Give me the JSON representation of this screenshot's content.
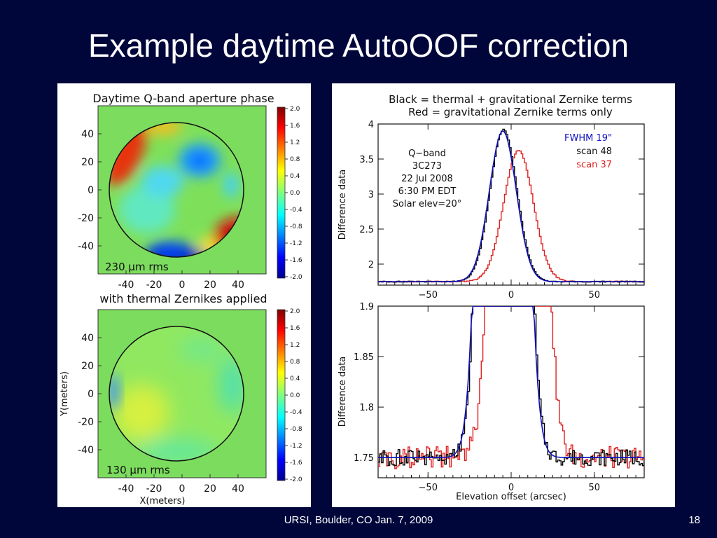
{
  "slide": {
    "title": "Example daytime AutoOOF correction",
    "footer": "URSI, Boulder, CO Jan. 7, 2009",
    "page_number": "18"
  },
  "chart_data": [
    {
      "type": "heatmap",
      "title": "Daytime Q-band aperture phase",
      "annotation": "230 μm rms",
      "x_ticks": [
        "-40",
        "-20",
        "0",
        "20",
        "40"
      ],
      "y_ticks": [
        "40",
        "20",
        "0",
        "-20",
        "-40"
      ],
      "colorbar_ticks": [
        "2.0",
        "1.6",
        "1.2",
        "0.8",
        "0.4",
        "0.0",
        "-0.4",
        "-0.8",
        "-1.2",
        "-1.6",
        "-2.0"
      ],
      "range": [
        -2.0,
        2.0
      ],
      "colormap": "jet",
      "colors": {
        "background": "#7cdc5e"
      }
    },
    {
      "type": "heatmap",
      "title": "with thermal Zernikes applied",
      "annotation": "130 μm rms",
      "x_ticks": [
        "-40",
        "-20",
        "0",
        "20",
        "40"
      ],
      "y_ticks": [
        "40",
        "20",
        "0",
        "-20",
        "-40"
      ],
      "xlabel": "X(meters)",
      "ylabel": "Y(meters)",
      "colorbar_ticks": [
        "2.0",
        "1.6",
        "1.2",
        "0.8",
        "0.4",
        "0.0",
        "-0.4",
        "-0.8",
        "-1.2",
        "-1.6",
        "-2.0"
      ],
      "range": [
        -2.0,
        2.0
      ],
      "colormap": "jet"
    },
    {
      "type": "line",
      "title_lines": [
        "Black = thermal + gravitational Zernike terms",
        "Red = gravitational Zernike terms only"
      ],
      "ylabel": "Difference data",
      "xlim": [
        -80,
        80
      ],
      "ylim": [
        1.7,
        4.0
      ],
      "x_ticks": [
        "−50",
        "0",
        "50"
      ],
      "y_ticks": [
        "4",
        "3.5",
        "3",
        "2.5",
        "2"
      ],
      "annotation_lines": [
        "Q−band",
        "3C273",
        "22 Jul 2008",
        "6:30 PM EDT",
        "Solar elev=20°"
      ],
      "legend": [
        {
          "label": "FWHM 19\"",
          "color": "#1010c0"
        },
        {
          "label": "scan 48",
          "color": "#000000"
        },
        {
          "label": "scan 37",
          "color": "#e02020"
        }
      ],
      "series": [
        {
          "color": "#000000",
          "center": -5,
          "fwhm": 19,
          "peak": 3.92
        },
        {
          "color": "#1010c0",
          "center": -5,
          "fwhm": 19,
          "peak": 3.9
        },
        {
          "color": "#e02020",
          "center": 4,
          "fwhm": 21,
          "peak": 3.62
        }
      ],
      "baseline": 1.75
    },
    {
      "type": "line",
      "ylabel": "Difference data",
      "xlabel": "Elevation offset (arcsec)",
      "xlim": [
        -80,
        80
      ],
      "ylim": [
        1.73,
        1.9
      ],
      "x_ticks": [
        "−50",
        "0",
        "50"
      ],
      "y_ticks": [
        "1.9",
        "1.85",
        "1.8",
        "1.75"
      ],
      "baseline": 1.75
    }
  ]
}
